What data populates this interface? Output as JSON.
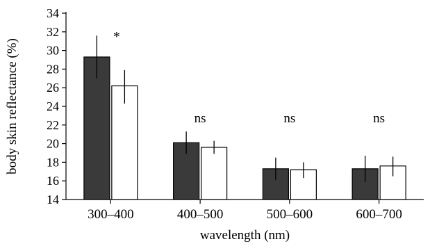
{
  "chart_data": {
    "type": "bar",
    "title": "",
    "xlabel": "wavelength (nm)",
    "ylabel": "body skin reflectance (%)",
    "ylim": [
      14,
      34
    ],
    "yticks": [
      14,
      16,
      18,
      20,
      22,
      24,
      26,
      28,
      30,
      32,
      34
    ],
    "categories": [
      "300–400",
      "400–500",
      "500–600",
      "600–700"
    ],
    "annotations": [
      "*",
      "ns",
      "ns",
      "ns"
    ],
    "grid": false,
    "legend": "none",
    "series": [
      {
        "color": "#3a3a3a",
        "values": [
          29.3,
          20.1,
          17.3,
          17.3
        ],
        "err_low": [
          27.0,
          18.9,
          16.1,
          15.9
        ],
        "err_high": [
          31.6,
          21.3,
          18.5,
          18.7
        ]
      },
      {
        "color": "#ffffff",
        "values": [
          26.2,
          19.6,
          17.2,
          17.6
        ],
        "err_low": [
          24.3,
          18.9,
          16.3,
          16.5
        ],
        "err_high": [
          27.9,
          20.3,
          18.0,
          18.6
        ]
      }
    ]
  }
}
